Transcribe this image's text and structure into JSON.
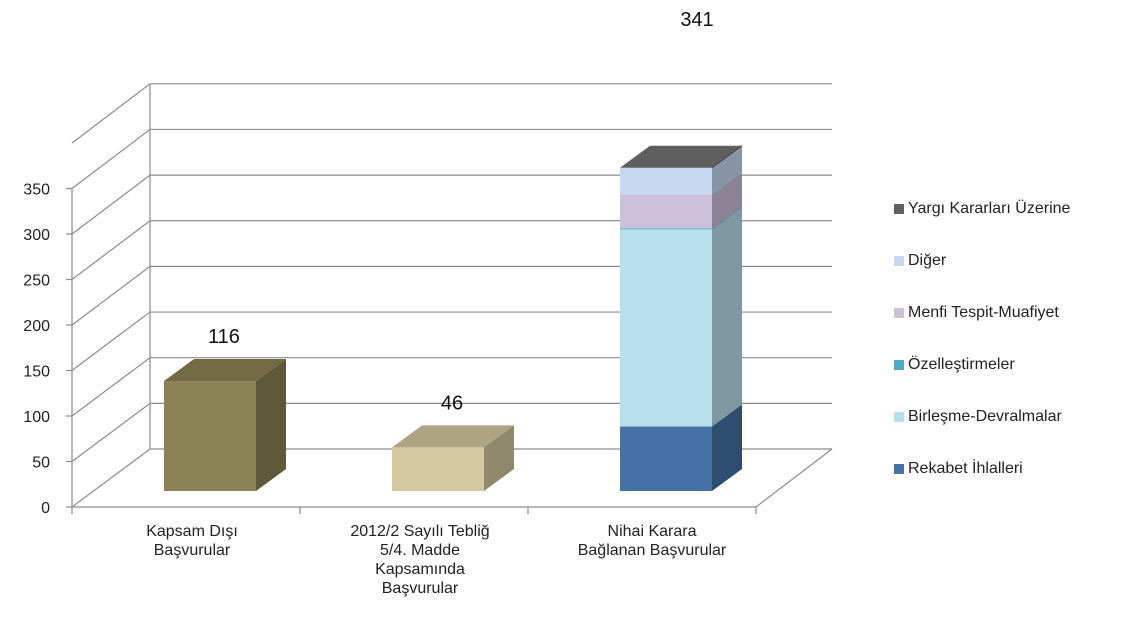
{
  "chart_data": {
    "type": "bar",
    "categories": [
      [
        "Kapsam Dışı",
        "Başvurular"
      ],
      [
        "2012/2 Sayılı Tebliğ",
        "5/4. Madde",
        "Kapsamında",
        "Başvurular"
      ],
      [
        "Nihai Karara",
        "Bağlanan Başvurular"
      ]
    ],
    "yticks": [
      "0",
      "50",
      "100",
      "150",
      "200",
      "250",
      "300",
      "350"
    ],
    "ylim": [
      0,
      350
    ],
    "grid": true,
    "legend_position": "right",
    "single_bars": [
      {
        "value": 116,
        "label": "116",
        "color": "#8b8355"
      },
      {
        "value": 46,
        "label": "46",
        "color": "#d3c8a0"
      }
    ],
    "stacked_bar": {
      "total_label": "341",
      "segments": [
        {
          "name": "Rekabet İhlalleri",
          "value": 68,
          "color": "#4472a4"
        },
        {
          "name": "Birleşme-Devralmalar",
          "value": 208,
          "color": "#b8dfeb"
        },
        {
          "name": "Özelleştirmeler",
          "value": 1,
          "color": "#4babc6"
        },
        {
          "name": "Menfi Tespit-Muafiyet",
          "value": 36,
          "color": "#ccc1da"
        },
        {
          "name": "Diğer",
          "value": 28,
          "color": "#c6d9f1"
        },
        {
          "name": "Yargı Kararları Üzerine",
          "value": 0,
          "color": "#5f5f5f"
        }
      ]
    }
  }
}
